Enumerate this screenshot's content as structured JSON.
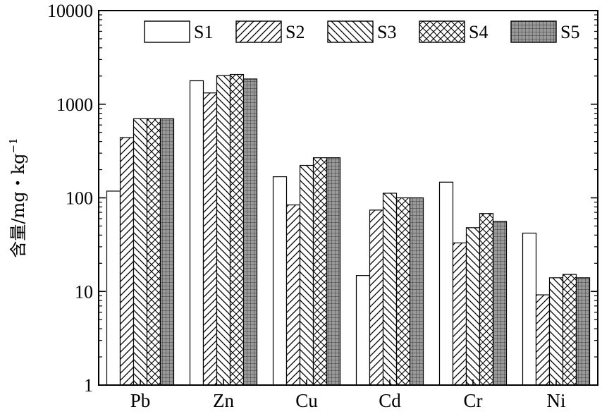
{
  "chart_data": {
    "type": "bar",
    "yscale": "log",
    "ylim": [
      1,
      10000
    ],
    "yticks": [
      1,
      10,
      100,
      1000,
      10000
    ],
    "ytick_labels": [
      "1",
      "10",
      "100",
      "1000",
      "10000"
    ],
    "ylabel": "含量/mg・kg",
    "ylabel_sup": "−1",
    "xlabel": "",
    "categories": [
      "Pb",
      "Zn",
      "Cu",
      "Cd",
      "Cr",
      "Ni"
    ],
    "legend_position": "top-right",
    "grid": false,
    "series": [
      {
        "name": "S1",
        "pattern": "none",
        "values": [
          118,
          1780,
          168,
          14.8,
          147,
          42
        ]
      },
      {
        "name": "S2",
        "pattern": "diag-right",
        "values": [
          440,
          1320,
          84,
          74,
          33,
          9.2
        ]
      },
      {
        "name": "S3",
        "pattern": "diag-left",
        "values": [
          700,
          2020,
          222,
          112,
          48,
          14
        ]
      },
      {
        "name": "S4",
        "pattern": "crosshatch",
        "values": [
          700,
          2080,
          268,
          100,
          68,
          15.2
        ]
      },
      {
        "name": "S5",
        "pattern": "grid",
        "values": [
          700,
          1860,
          268,
          100,
          56,
          14
        ]
      }
    ]
  }
}
